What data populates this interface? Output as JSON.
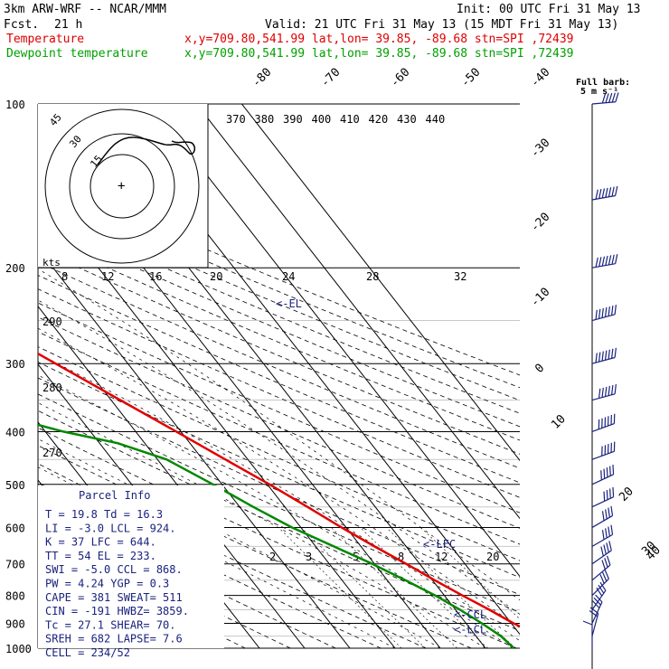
{
  "header": {
    "model": "3km ARW-WRF -- NCAR/MMM",
    "init": "Init: 00 UTC Fri 31 May 13",
    "fcst_label": "Fcst.",
    "fcst_value": "21 h",
    "valid": "Valid: 21 UTC Fri 31 May 13 (15 MDT Fri 31 May 13)",
    "temp_label": "Temperature",
    "dew_label": "Dewpoint temperature",
    "temp_loc": "x,y=709.80,541.99   lat,lon= 39.85, -89.68  stn=SPI ,72439",
    "dew_loc": "x,y=709.80,541.99   lat,lon= 39.85, -89.68  stn=SPI ,72439",
    "barb_key_1": "Full barb:",
    "barb_key_2": "5 m s⁻¹"
  },
  "colors": {
    "temperature": "#e00000",
    "dewpoint": "#008800",
    "hodograph": "#000000",
    "text_blue": "#1a237e",
    "barbs": "#1a237e"
  },
  "chart_data": {
    "type": "line",
    "subtype": "skew-t log-p",
    "pressure_levels": [
      "100",
      "200",
      "300",
      "400",
      "500",
      "600",
      "700",
      "800",
      "900",
      "1000"
    ],
    "isotherm_labels": [
      "-80",
      "-70",
      "-60",
      "-50",
      "-40",
      "-30",
      "-20",
      "-10",
      "0",
      "10",
      "20",
      "30",
      "40"
    ],
    "theta_labels": [
      "370",
      "380",
      "390",
      "400",
      "410",
      "420",
      "430",
      "440"
    ],
    "theta_lower_labels": [
      "290",
      "280",
      "270"
    ],
    "mixing_ratio_labels": [
      "2",
      "3",
      "5",
      "8",
      "12",
      "20"
    ],
    "hodo_speed_labels": [
      "8",
      "12",
      "16",
      "20",
      "24",
      "28",
      "32"
    ],
    "hodo_units": "kts",
    "hodo_ring_labels": [
      "15",
      "30",
      "45"
    ],
    "series": [
      {
        "name": "Temperature",
        "points": [
          {
            "p": 1000,
            "t": 19.8
          },
          {
            "p": 950,
            "t": 21.0
          },
          {
            "p": 925,
            "t": 22.5
          },
          {
            "p": 900,
            "t": 20.5
          },
          {
            "p": 850,
            "t": 17.5
          },
          {
            "p": 800,
            "t": 14.0
          },
          {
            "p": 750,
            "t": 10.5
          },
          {
            "p": 700,
            "t": 7.0
          },
          {
            "p": 650,
            "t": 3.0
          },
          {
            "p": 600,
            "t": -1.0
          },
          {
            "p": 550,
            "t": -5.0
          },
          {
            "p": 500,
            "t": -9.5
          },
          {
            "p": 450,
            "t": -15.0
          },
          {
            "p": 400,
            "t": -21.0
          },
          {
            "p": 350,
            "t": -28.0
          },
          {
            "p": 300,
            "t": -36.0
          },
          {
            "p": 250,
            "t": -45.5
          },
          {
            "p": 225,
            "t": -51.5
          },
          {
            "p": 200,
            "t": -56.0
          },
          {
            "p": 175,
            "t": -57.5
          },
          {
            "p": 150,
            "t": -60.5
          },
          {
            "p": 125,
            "t": -63.5
          },
          {
            "p": 100,
            "t": -67.0
          }
        ]
      },
      {
        "name": "Dewpoint temperature",
        "points": [
          {
            "p": 1000,
            "t": 16.3
          },
          {
            "p": 950,
            "t": 15.5
          },
          {
            "p": 900,
            "t": 13.5
          },
          {
            "p": 850,
            "t": 11.0
          },
          {
            "p": 800,
            "t": 8.0
          },
          {
            "p": 750,
            "t": 4.0
          },
          {
            "p": 700,
            "t": -0.5
          },
          {
            "p": 650,
            "t": -6.0
          },
          {
            "p": 600,
            "t": -12.0
          },
          {
            "p": 550,
            "t": -17.0
          },
          {
            "p": 500,
            "t": -22.0
          },
          {
            "p": 450,
            "t": -28.0
          },
          {
            "p": 420,
            "t": -36.0
          },
          {
            "p": 400,
            "t": -46.0
          },
          {
            "p": 380,
            "t": -54.0
          },
          {
            "p": 350,
            "t": -56.0
          },
          {
            "p": 300,
            "t": -56.0
          },
          {
            "p": 250,
            "t": -63.0
          },
          {
            "p": 200,
            "t": -70.0
          },
          {
            "p": 150,
            "t": -80.0
          },
          {
            "p": 125,
            "t": -87.0
          },
          {
            "p": 100,
            "t": -92.0
          }
        ]
      }
    ],
    "annotations": [
      {
        "text": "<-EL",
        "p": 233
      },
      {
        "text": "<-LFC",
        "p": 644
      },
      {
        "text": "<-CCL",
        "p": 868
      },
      {
        "text": "<-LCL",
        "p": 924
      }
    ],
    "wind_profile": [
      {
        "p": 1000,
        "speed_kts": 10,
        "dir": 180
      },
      {
        "p": 950,
        "speed_kts": 20,
        "dir": 195
      },
      {
        "p": 900,
        "speed_kts": 25,
        "dir": 205
      },
      {
        "p": 850,
        "speed_kts": 25,
        "dir": 215
      },
      {
        "p": 800,
        "speed_kts": 30,
        "dir": 225
      },
      {
        "p": 750,
        "speed_kts": 30,
        "dir": 230
      },
      {
        "p": 700,
        "speed_kts": 35,
        "dir": 235
      },
      {
        "p": 650,
        "speed_kts": 35,
        "dir": 240
      },
      {
        "p": 600,
        "speed_kts": 40,
        "dir": 240
      },
      {
        "p": 550,
        "speed_kts": 40,
        "dir": 245
      },
      {
        "p": 500,
        "speed_kts": 45,
        "dir": 245
      },
      {
        "p": 450,
        "speed_kts": 50,
        "dir": 250
      },
      {
        "p": 400,
        "speed_kts": 55,
        "dir": 250
      },
      {
        "p": 350,
        "speed_kts": 60,
        "dir": 255
      },
      {
        "p": 300,
        "speed_kts": 65,
        "dir": 255
      },
      {
        "p": 250,
        "speed_kts": 70,
        "dir": 255
      },
      {
        "p": 200,
        "speed_kts": 70,
        "dir": 260
      },
      {
        "p": 150,
        "speed_kts": 65,
        "dir": 260
      },
      {
        "p": 100,
        "speed_kts": 50,
        "dir": 265
      }
    ]
  },
  "parcel_info": {
    "title": "Parcel Info",
    "rows": [
      "T   =    19.8  Td =   16.3",
      "LI  =    -3.0  LCL =  924.",
      "K   =      37  LFC =  644.",
      "TT  =      54  EL  =  233.",
      "SWI =    -5.0  CCL =  868.",
      "PW  =    4.24  YGP =   0.3",
      "CAPE =    381  SWEAT=  511",
      "CIN  =   -191  HWBZ= 3859.",
      "Tc  =    27.1  SHEAR=  70.",
      "SREH =   682  LAPSE=  7.6",
      "CELL = 234/52"
    ]
  }
}
